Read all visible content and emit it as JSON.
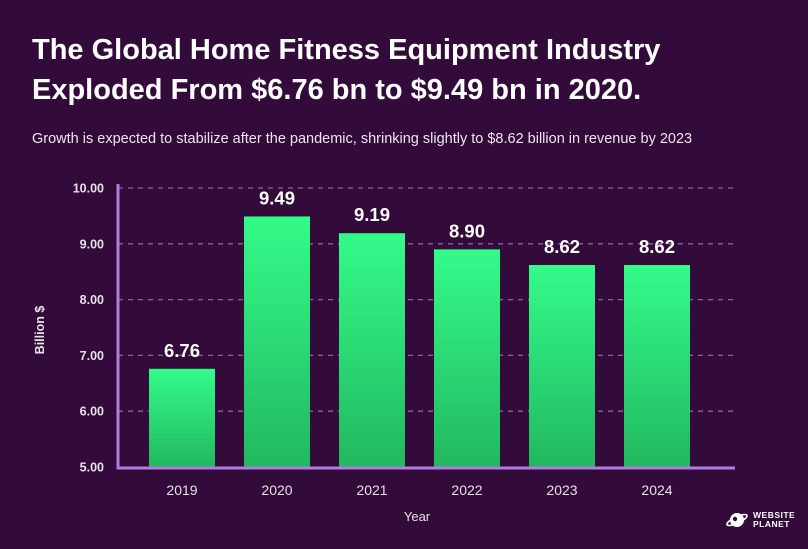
{
  "header": {
    "title_line1": "The Global Home Fitness Equipment Industry",
    "title_line2": "Exploded From $6.76 bn to $9.49 bn in 2020.",
    "subtitle": "Growth is expected to stabilize after the pandemic, shrinking slightly to $8.62 billion in revenue by 2023"
  },
  "chart_data": {
    "type": "bar",
    "categories": [
      "2019",
      "2020",
      "2021",
      "2022",
      "2023",
      "2024"
    ],
    "values": [
      6.76,
      9.49,
      9.19,
      8.9,
      8.62,
      8.62
    ],
    "value_labels": [
      "6.76",
      "9.49",
      "9.19",
      "8.90",
      "8.62",
      "8.62"
    ],
    "xlabel": "Year",
    "ylabel": "Billion $",
    "ylim": [
      5,
      10
    ],
    "yticks": [
      "5.00",
      "6.00",
      "7.00",
      "8.00",
      "9.00",
      "10.00"
    ],
    "grid": true,
    "grid_style": "dashed",
    "colors": {
      "background": "#330b3a",
      "bar_top": "#34fb8a",
      "bar_bottom": "#22b85f",
      "axis": "#b07ce0",
      "grid": "#8e5fa6",
      "text": "#ffffff",
      "tick_text": "#e8e0ea"
    }
  },
  "logo": {
    "line1": "WEBSITE",
    "line2": "PLANET",
    "icon": "planet-icon"
  }
}
